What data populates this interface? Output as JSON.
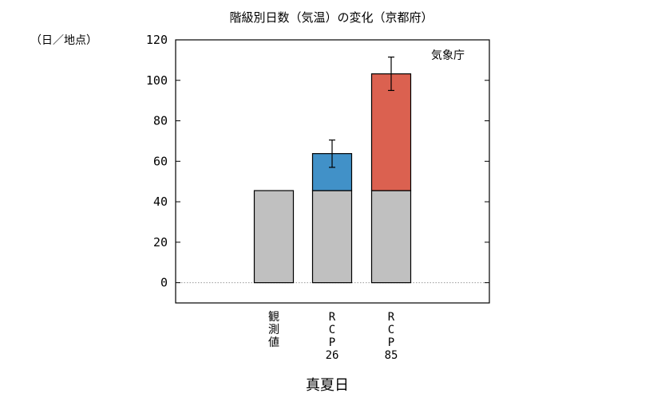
{
  "chart_data": {
    "type": "bar",
    "title": "階級別日数（気温）の変化（京都府）",
    "unit_label": "（日／地点）",
    "credit": "気象庁",
    "xlabel": "真夏日",
    "categories": [
      [
        "観",
        "測",
        "値"
      ],
      [
        "R",
        "C",
        "P",
        "26"
      ],
      [
        "R",
        "C",
        "P",
        "85"
      ]
    ],
    "ylim": [
      -10,
      120
    ],
    "yticks": [
      0,
      20,
      40,
      60,
      80,
      100,
      120
    ],
    "base_values": [
      45.5,
      45.5,
      45.5
    ],
    "increase_values": [
      null,
      18.3,
      57.7
    ],
    "totals": [
      45.5,
      63.8,
      103.2
    ],
    "error_low": [
      null,
      57.0,
      95.0
    ],
    "error_high": [
      null,
      70.5,
      111.5
    ],
    "colors": {
      "base": "#c0c0c0",
      "increase": [
        "#4191c8",
        "#4191c8",
        "#db6150"
      ],
      "zero_line": "#999999"
    }
  }
}
